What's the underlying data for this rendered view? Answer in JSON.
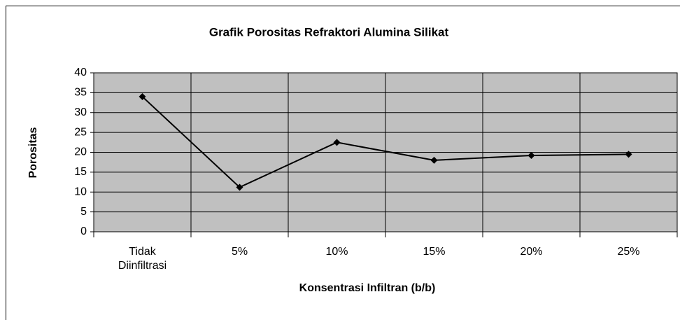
{
  "chart_data": {
    "type": "line",
    "title": "Grafik Porositas Refraktori Alumina Silikat",
    "x_label": "Konsentrasi Infiltran (b/b)",
    "y_label": "Porositas",
    "categories": [
      "Tidak Diinfiltrasi",
      "5%",
      "10%",
      "15%",
      "20%",
      "25%"
    ],
    "series": [
      {
        "name": "Porositas",
        "color": "#000000",
        "values": [
          34,
          11.2,
          22.5,
          18,
          19.2,
          19.5
        ]
      }
    ],
    "ylim": [
      0,
      40
    ],
    "yticks": [
      0,
      5,
      10,
      15,
      20,
      25,
      30,
      35,
      40
    ],
    "grid": true,
    "plot_background": "#c0c0c0"
  }
}
